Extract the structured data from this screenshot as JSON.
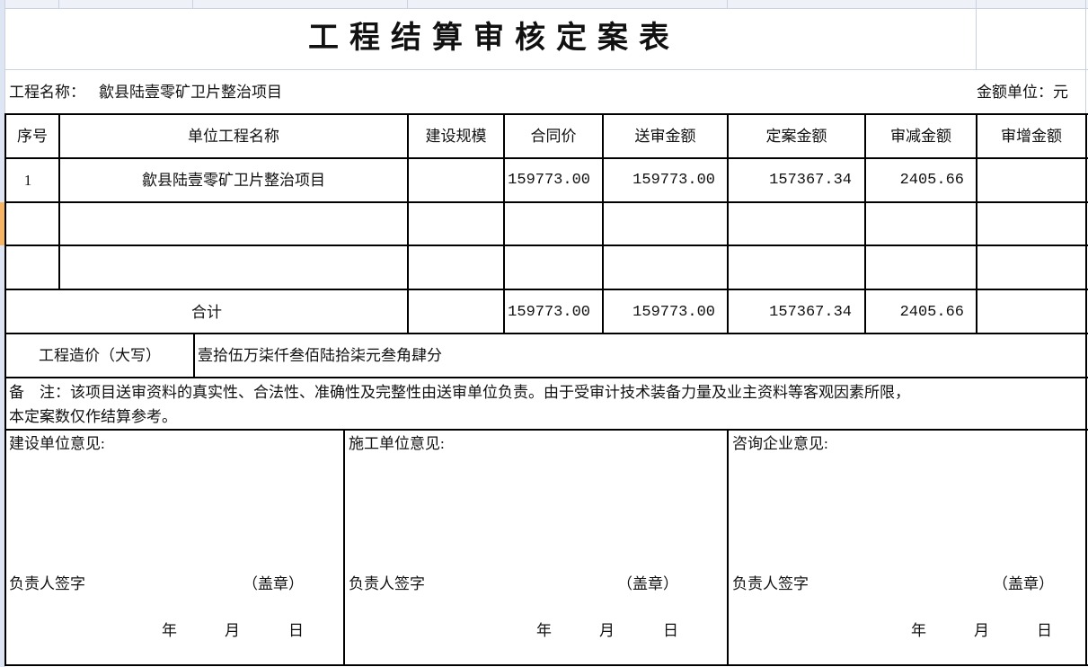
{
  "title": "工程结算审核定案表",
  "project_name_label": "工程名称：",
  "project_name": "歙县陆壹零矿卫片整治项目",
  "unit_label": "金额单位：元",
  "table": {
    "headers": [
      "序号",
      "单位工程名称",
      "建设规模",
      "合同价",
      "送审金额",
      "定案金额",
      "审减金额",
      "审增金额"
    ],
    "rows": [
      {
        "no": "1",
        "name": "歙县陆壹零矿卫片整治项目",
        "scale": "",
        "contract": "159773.00",
        "submitted": "159773.00",
        "approved": "157367.34",
        "reduced": "2405.66",
        "increased": ""
      },
      {
        "no": "",
        "name": "",
        "scale": "",
        "contract": "",
        "submitted": "",
        "approved": "",
        "reduced": "",
        "increased": ""
      },
      {
        "no": "",
        "name": "",
        "scale": "",
        "contract": "",
        "submitted": "",
        "approved": "",
        "reduced": "",
        "increased": ""
      }
    ],
    "total": {
      "label": "合计",
      "contract": "159773.00",
      "submitted": "159773.00",
      "approved": "157367.34",
      "reduced": "2405.66",
      "increased": ""
    }
  },
  "capital": {
    "label": "工程造价（大写）",
    "value": "壹拾伍万柒仟叁佰陆拾柒元叁角肆分"
  },
  "note": {
    "line1": "备　注：该项目送审资料的真实性、合法性、准确性及完整性由送审单位负责。由于受审计技术装备力量及业主资料等客观因素所限，",
    "line2": "本定案数仅作结算参考。"
  },
  "opinions": [
    {
      "label": "建设单位意见:",
      "sign": "负责人签字",
      "seal": "（盖章）",
      "year": "年",
      "month": "月",
      "day": "日"
    },
    {
      "label": "施工单位意见:",
      "sign": "负责人签字",
      "seal": "（盖章）",
      "year": "年",
      "month": "月",
      "day": "日"
    },
    {
      "label": "咨询企业意见:",
      "sign": "负责人签字",
      "seal": "（盖章）",
      "year": "年",
      "month": "月",
      "day": "日"
    }
  ],
  "colors": {
    "grid": "#c9d2de",
    "row_header": "#dde6f2",
    "selected_row": "#f7b463",
    "border": "#000000"
  }
}
